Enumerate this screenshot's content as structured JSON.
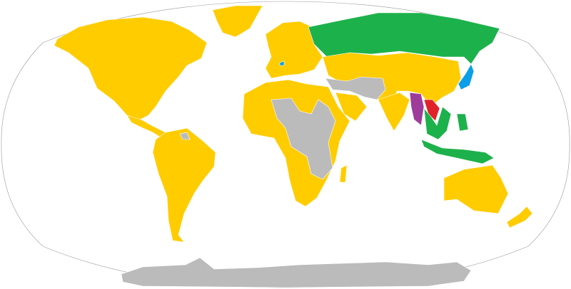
{
  "map": {
    "projection": "world",
    "colors": {
      "yellow": "#FFCC00",
      "green": "#1DB14B",
      "blue": "#0A9FE6",
      "purple": "#9E3C9C",
      "red": "#E0222A",
      "gray": "#BBBBBB",
      "border": "#FFFFFF",
      "outline": "#999999"
    }
  }
}
